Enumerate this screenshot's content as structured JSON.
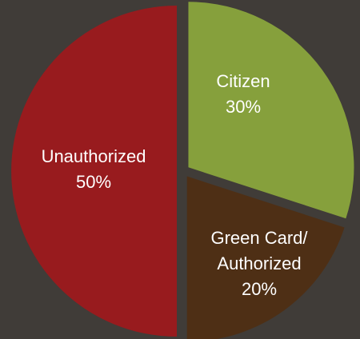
{
  "chart_data": {
    "type": "pie",
    "categories": [
      "Citizen",
      "Green Card/ Authorized",
      "Unauthorized"
    ],
    "values": [
      30,
      20,
      50
    ],
    "value_labels": [
      "30%",
      "20%",
      "50%"
    ],
    "colors": [
      "#86a03c",
      "#4e2f15",
      "#981b1e"
    ]
  }
}
